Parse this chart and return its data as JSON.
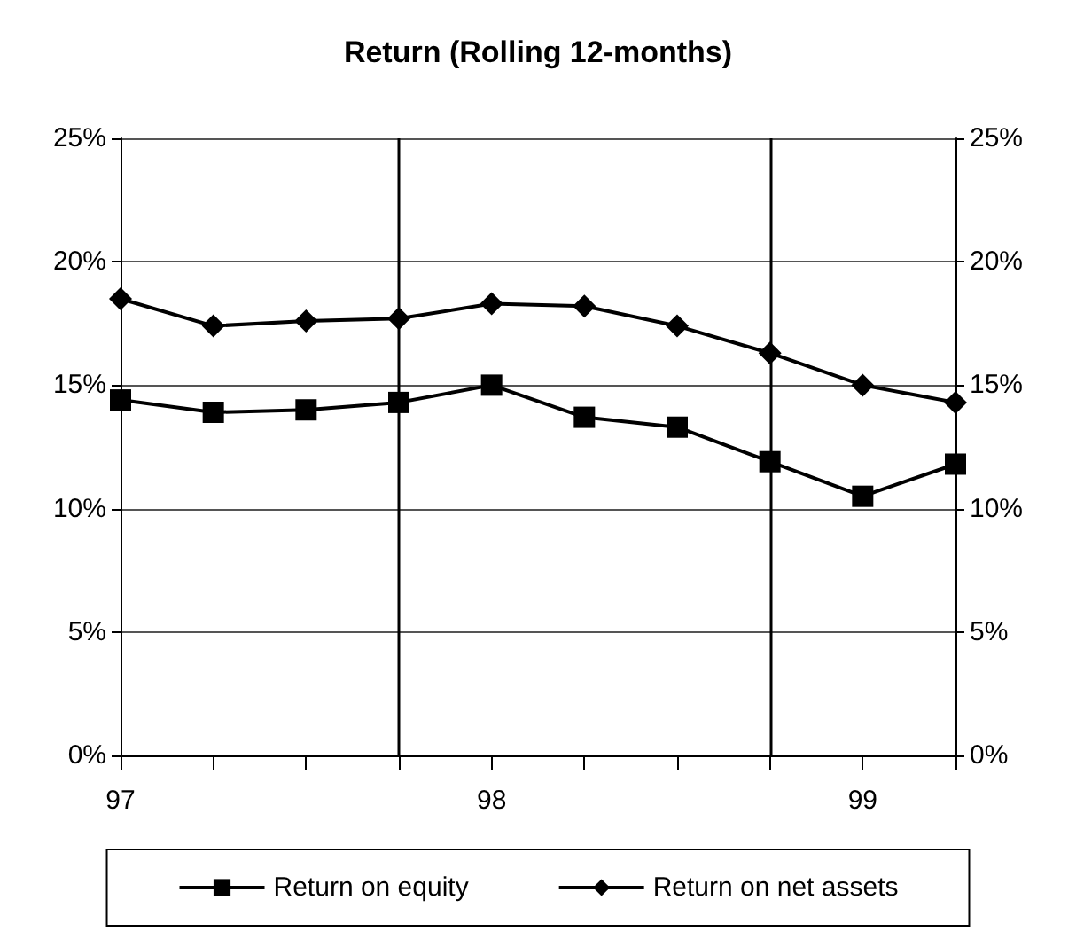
{
  "chart_data": {
    "type": "line",
    "title": "Return (Rolling 12-months)",
    "x": [
      97,
      97.25,
      97.5,
      97.75,
      98,
      98.25,
      98.5,
      98.75,
      99,
      99.25
    ],
    "xlim": [
      97,
      99.25
    ],
    "xticks": [
      97,
      {
        "value": 97.25,
        "label": null
      },
      {
        "value": 97.5,
        "label": null
      },
      {
        "value": 97.75,
        "label": null
      },
      98,
      {
        "value": 98.25,
        "label": null
      },
      {
        "value": 98.5,
        "label": null
      },
      {
        "value": 98.75,
        "label": null
      },
      99,
      {
        "value": 99.25,
        "label": null
      }
    ],
    "ylim": [
      0,
      25
    ],
    "yticks": [
      {
        "value": 0,
        "label": "0%"
      },
      {
        "value": 5,
        "label": "5%"
      },
      {
        "value": 10,
        "label": "10%"
      },
      {
        "value": 15,
        "label": "15%"
      },
      {
        "value": 20,
        "label": "20%"
      },
      {
        "value": 25,
        "label": "25%"
      }
    ],
    "y2lim": [
      0,
      25
    ],
    "y2ticks": [
      {
        "value": 0,
        "label": "0%"
      },
      {
        "value": 5,
        "label": "5%"
      },
      {
        "value": 10,
        "label": "10%"
      },
      {
        "value": 15,
        "label": "15%"
      },
      {
        "value": 20,
        "label": "20%"
      },
      {
        "value": 25,
        "label": "25%"
      }
    ],
    "series": [
      {
        "name": "Return on equity",
        "color": "#000000",
        "marker": "square",
        "values": [
          14.4,
          13.9,
          14.0,
          14.3,
          15.0,
          13.7,
          13.3,
          11.9,
          10.5,
          11.8
        ]
      },
      {
        "name": "Return on net assets",
        "color": "#000000",
        "marker": "diamond",
        "values": [
          18.5,
          17.4,
          17.6,
          17.7,
          18.3,
          18.2,
          17.4,
          16.3,
          15.0,
          14.3
        ]
      }
    ],
    "ref_lines": [
      {
        "axis": "x",
        "value": 97.75,
        "color": "#000000"
      },
      {
        "axis": "x",
        "value": 98.75,
        "color": "#000000"
      }
    ],
    "grid": "y",
    "legend": "bottom",
    "line_style": "solid"
  }
}
